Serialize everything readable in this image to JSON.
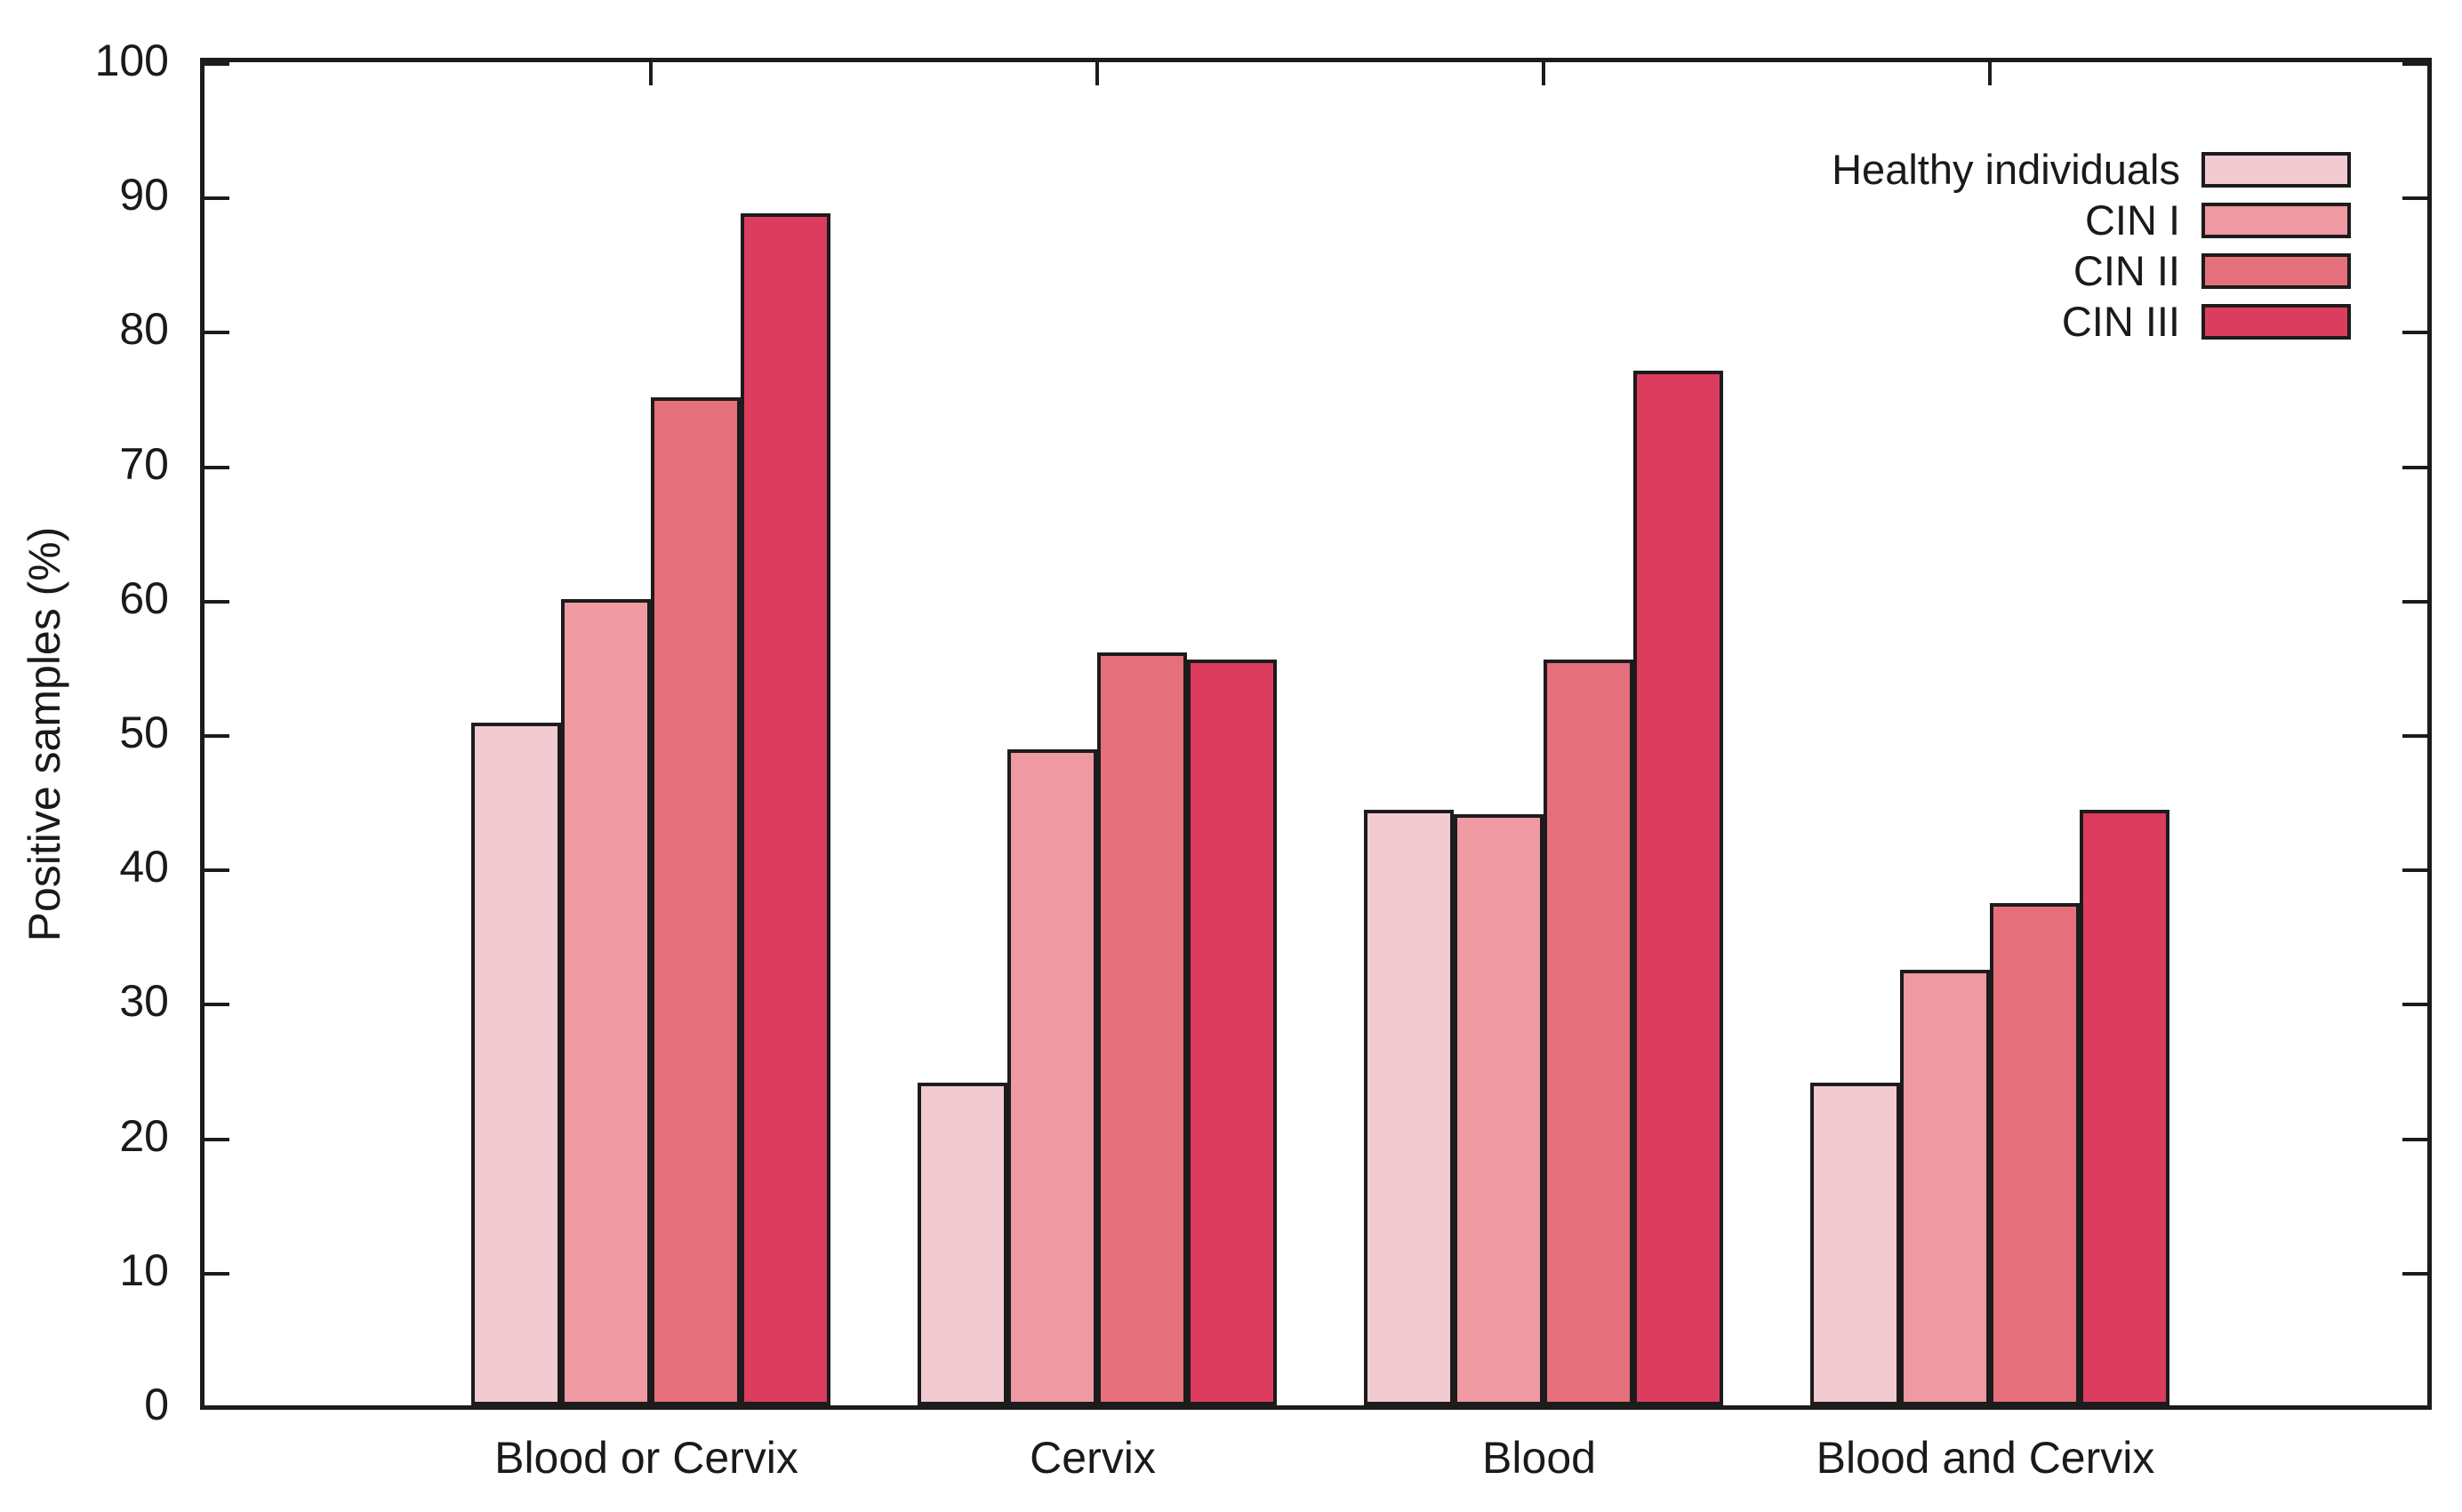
{
  "chart_data": {
    "type": "bar",
    "title": "",
    "xlabel": "",
    "ylabel": "Positive samples (%)",
    "ylim": [
      0,
      100
    ],
    "yticks": [
      0,
      10,
      20,
      30,
      40,
      50,
      60,
      70,
      80,
      90,
      100
    ],
    "grid": false,
    "legend_position": "top-right-inside",
    "background_color": "#ffffff",
    "axis_color": "#1c1c1c",
    "bar_border_color": "#1c1c1c",
    "categories": [
      "Blood or Cervix",
      "Cervix",
      "Blood",
      "Blood and Cervix"
    ],
    "series": [
      {
        "name": "Healthy individuals",
        "color": "#f2cad1",
        "values": [
          50.8,
          24.0,
          44.3,
          24.0
        ]
      },
      {
        "name": "CIN I",
        "color": "#ef99a2",
        "values": [
          60.0,
          48.8,
          44.0,
          32.4
        ]
      },
      {
        "name": "CIN II",
        "color": "#e5707b",
        "values": [
          75.0,
          56.0,
          55.5,
          37.4
        ]
      },
      {
        "name": "CIN III",
        "color": "#dc3c5e",
        "values": [
          88.7,
          55.5,
          77.0,
          44.3
        ]
      }
    ]
  }
}
